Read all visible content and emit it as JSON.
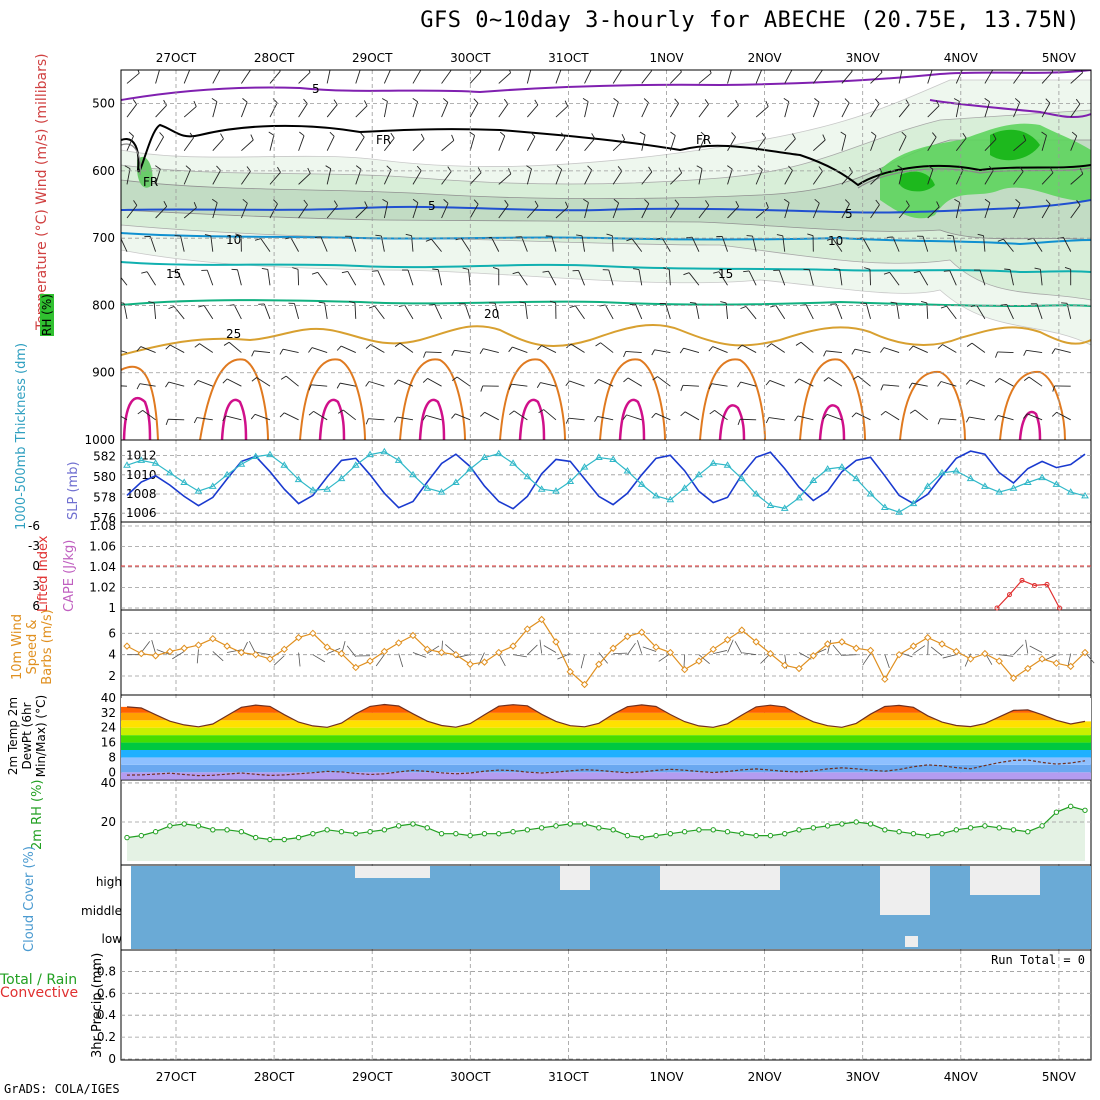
{
  "title": "GFS 0~10day 3-hourly for ABECHE (20.75E, 13.75N)",
  "credit": "GrADS: COLA/IGES",
  "colors": {
    "temp_contour": "#d08020",
    "freezing": "#000000",
    "wind_contours": [
      "#2050d0",
      "#1090d0",
      "#10b0b0",
      "#10b080"
    ],
    "hot_contour": "#d0108a",
    "purple": "#8020b0",
    "thickness": "#1a3acf",
    "slp": "#30b8c8",
    "rh": "#22a022",
    "wind10": "#e09020",
    "cloud": "#6aaad6",
    "lifted": "#e03030"
  },
  "chart_data": {
    "type": "meteogram",
    "x_dates": [
      "27OCT",
      "28OCT",
      "29OCT",
      "30OCT",
      "31OCT",
      "1NOV",
      "2NOV",
      "3NOV",
      "4NOV",
      "5NOV"
    ],
    "panels": {
      "upper_air": {
        "ylabel": "Temperature (°C)  Wind (m/s)  (millibars)",
        "rh_label": "RH (%)",
        "pressure_ticks": [
          500,
          600,
          700,
          800,
          900,
          1000
        ],
        "contour_labels": [
          {
            "text": "5",
            "level": "upper"
          },
          {
            "text": "FR",
            "level": "freezing"
          },
          {
            "text": "10",
            "level": "wind"
          },
          {
            "text": "15",
            "level": "wind"
          },
          {
            "text": "20",
            "level": "wind"
          },
          {
            "text": "25",
            "level": "temp"
          }
        ],
        "isotherm_levels": [
          5,
          10,
          15,
          20,
          25
        ]
      },
      "thickness_slp": {
        "ylabel_left": "1000-500mb Thickness (dm)",
        "ylabel_right": "SLP (mb)",
        "thickness_ticks": [
          576,
          578,
          580,
          582
        ],
        "slp_ticks": [
          1006,
          1008,
          1010,
          1012
        ],
        "thickness_values": [
          578.2,
          579.5,
          580.1,
          579.2,
          578.1,
          577.2,
          578.0,
          579.8,
          581.5,
          582.0,
          580.5,
          578.8,
          577.4,
          578.2,
          580.0,
          581.6,
          581.8,
          580.2,
          578.4,
          577.0,
          577.6,
          579.5,
          581.3,
          582.2,
          581.0,
          579.1,
          577.6,
          576.9,
          578.1,
          580.3,
          581.7,
          581.5,
          579.8,
          578.1,
          577.3,
          578.4,
          580.2,
          581.8,
          582.1,
          580.6,
          578.6,
          577.5,
          578.0,
          580.2,
          581.9,
          582.4,
          580.8,
          579.0,
          577.7,
          578.6,
          580.5,
          581.6,
          581.9,
          580.1,
          578.2,
          577.4,
          578.3,
          580.1,
          581.8,
          582.5,
          582.2,
          580.4,
          579.4,
          580.8,
          581.5,
          580.9,
          581.2,
          582.2
        ],
        "slp_values": [
          1011.0,
          1011.5,
          1011.2,
          1010.2,
          1009.2,
          1008.3,
          1008.8,
          1010.0,
          1011.1,
          1011.9,
          1012.1,
          1011.0,
          1009.5,
          1008.4,
          1008.5,
          1009.6,
          1011.0,
          1012.1,
          1012.4,
          1011.5,
          1010.0,
          1008.6,
          1008.2,
          1009.2,
          1010.6,
          1011.8,
          1012.2,
          1011.2,
          1009.8,
          1008.5,
          1008.3,
          1009.3,
          1010.8,
          1011.8,
          1011.6,
          1010.4,
          1009.0,
          1007.8,
          1007.4,
          1008.6,
          1010.0,
          1011.2,
          1011.0,
          1009.6,
          1008.0,
          1006.8,
          1006.5,
          1007.6,
          1009.4,
          1010.6,
          1010.8,
          1009.6,
          1008.0,
          1006.6,
          1006.1,
          1007.0,
          1008.8,
          1010.2,
          1010.4,
          1009.6,
          1008.8,
          1008.2,
          1008.6,
          1009.2,
          1009.7,
          1009.0,
          1008.2,
          1007.8
        ]
      },
      "stability": {
        "ylabel_left": "Lifted Index",
        "ylabel_right": "CAPE (J/kg)",
        "li_ticks": [
          -6,
          -3,
          0,
          3,
          6
        ],
        "li_tick_labels": [
          "-6",
          "-3",
          "0",
          "3",
          "6"
        ],
        "cape_ticks": [
          1,
          1.02,
          1.04,
          1.06,
          1.08
        ],
        "cape_tick_labels": [
          "1",
          "1.02",
          "1.04",
          "1.06",
          "1.08"
        ],
        "cape_values": [
          1.0,
          1.013,
          1.027,
          1.022,
          1.023,
          1.0
        ]
      },
      "wind10m": {
        "ylabel": "10m Wind Speed & Barbs (m/s)",
        "ticks": [
          2,
          4,
          6
        ],
        "speed_values": [
          4.8,
          4.1,
          3.9,
          4.3,
          4.6,
          4.9,
          5.5,
          4.8,
          4.2,
          4.0,
          3.6,
          4.5,
          5.6,
          6.0,
          4.7,
          4.1,
          2.8,
          3.4,
          4.3,
          5.1,
          5.8,
          4.5,
          4.2,
          4.0,
          3.1,
          3.3,
          4.2,
          4.8,
          6.4,
          7.3,
          5.2,
          2.4,
          1.2,
          3.1,
          4.6,
          5.7,
          6.1,
          4.7,
          4.2,
          2.6,
          3.4,
          4.5,
          5.4,
          6.3,
          5.2,
          4.1,
          3.0,
          2.7,
          3.9,
          5.0,
          5.2,
          4.6,
          4.4,
          1.7,
          4.0,
          4.8,
          5.6,
          5.0,
          4.3,
          3.6,
          4.1,
          3.4,
          1.8,
          2.7,
          3.6,
          3.2,
          2.9,
          4.2
        ],
        "barb_values": [
          4.0,
          4.2,
          4.1,
          4.0,
          4.3,
          4.5,
          4.3,
          4.2,
          4.0,
          4.1,
          4.0,
          3.9,
          4.2,
          4.0,
          4.1,
          4.0,
          3.8,
          3.9,
          4.0,
          4.1,
          4.2,
          4.1,
          4.0,
          4.1,
          4.0,
          4.2,
          4.1,
          4.0,
          4.0,
          4.1,
          4.2,
          4.1,
          4.0,
          4.2,
          4.1,
          4.0,
          4.1,
          4.3,
          4.1,
          4.0,
          4.0,
          4.1,
          4.2,
          4.1,
          4.0,
          4.1,
          4.0,
          4.2,
          4.0,
          4.1,
          3.9,
          4.0,
          4.1,
          4.0,
          4.2,
          4.1,
          4.0,
          3.9,
          4.0,
          4.1,
          4.2,
          4.0,
          4.0,
          4.1,
          4.2,
          4.0,
          4.1,
          4.2
        ]
      },
      "temp2m": {
        "ylabel": "2m Temp 2m DewPt (6hr Min/Max) (°C)",
        "ticks": [
          0,
          8,
          16,
          24,
          32,
          40
        ],
        "temp_values": [
          35.2,
          34.6,
          31.0,
          27.5,
          25.5,
          24.5,
          26.0,
          30.5,
          35.0,
          36.2,
          35.5,
          31.0,
          27.0,
          25.0,
          24.2,
          26.5,
          31.5,
          35.5,
          36.5,
          35.7,
          31.5,
          27.5,
          25.2,
          24.3,
          26.2,
          31.0,
          35.6,
          36.4,
          35.8,
          31.2,
          27.4,
          25.1,
          24.5,
          26.4,
          31.2,
          35.3,
          36.3,
          35.4,
          31.1,
          27.3,
          25.0,
          24.2,
          26.1,
          30.8,
          35.2,
          36.1,
          35.2,
          30.9,
          27.2,
          25.1,
          24.2,
          26.3,
          31.3,
          35.4,
          36.0,
          35.0,
          30.4,
          27.0,
          25.2,
          24.6,
          26.2,
          29.8,
          33.3,
          33.6,
          31.0,
          28.0,
          26.0,
          27.4
        ],
        "dewpt_values": [
          -1.5,
          -1.4,
          -1.0,
          -0.5,
          -1.2,
          -1.8,
          -1.6,
          -1.0,
          -0.4,
          -1.1,
          -1.7,
          -1.4,
          -0.8,
          -0.2,
          0.5,
          0.2,
          -0.6,
          -1.2,
          -0.8,
          0.2,
          1.0,
          0.5,
          -0.3,
          -0.8,
          -0.4,
          0.6,
          1.2,
          0.9,
          0.1,
          -0.4,
          0.1,
          0.8,
          1.4,
          1.0,
          0.3,
          -0.2,
          0.2,
          1.0,
          1.6,
          1.1,
          0.4,
          -0.1,
          0.4,
          1.3,
          1.8,
          1.2,
          0.5,
          0.2,
          0.8,
          1.8,
          2.4,
          1.9,
          1.1,
          0.6,
          1.5,
          3.0,
          4.0,
          3.5,
          2.5,
          1.9,
          3.6,
          5.2,
          6.4,
          6.6,
          5.3,
          4.4,
          5.0,
          6.2
        ],
        "color_bands": [
          "#b49cf0",
          "#6aa8f0",
          "#8ec0ff",
          "#20b0ff",
          "#00c840",
          "#46dd00",
          "#c8f000",
          "#ffe100",
          "#ffa000",
          "#ff6000",
          "#e02000"
        ]
      },
      "rh2m": {
        "ylabel": "2m RH (%)",
        "ticks": [
          20,
          40
        ],
        "values": [
          12,
          13,
          15,
          18,
          19,
          18,
          16,
          16,
          15,
          12,
          11,
          11,
          12,
          14,
          16,
          15,
          14,
          15,
          16,
          18,
          19,
          17,
          14,
          14,
          13,
          14,
          14,
          15,
          16,
          17,
          18,
          19,
          19,
          17,
          16,
          13,
          12,
          13,
          14,
          15,
          16,
          16,
          15,
          14,
          13,
          13,
          14,
          16,
          17,
          18,
          19,
          20,
          19,
          16,
          15,
          14,
          13,
          14,
          16,
          17,
          18,
          17,
          16,
          15,
          18,
          25,
          28,
          26
        ]
      },
      "clouds": {
        "ylabel": "Cloud Cover (%)",
        "levels": [
          "high",
          "middle",
          "low"
        ]
      },
      "precip": {
        "ylabel_a": "Total / Rain",
        "ylabel_b": "Convective",
        "ylabel_c": "3hr Precip (mm)",
        "ticks": [
          0,
          0.2,
          0.4,
          0.6,
          0.8
        ],
        "tick_labels": [
          "0",
          "0.2",
          "0.4",
          "0.6",
          "0.8"
        ],
        "run_total": "Run Total = 0"
      }
    }
  }
}
